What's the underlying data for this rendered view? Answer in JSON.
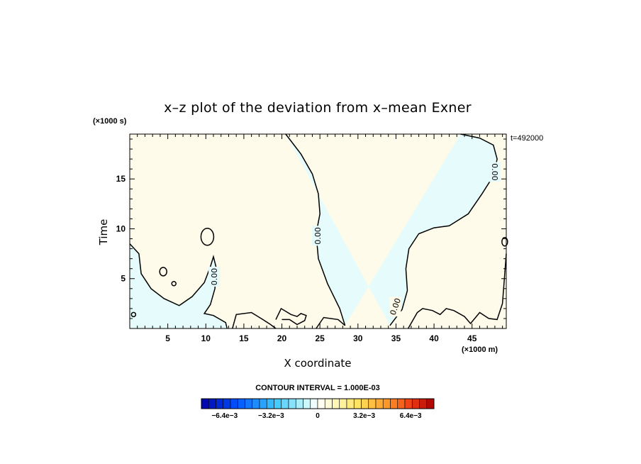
{
  "chart_data": {
    "type": "contour",
    "title": "x–z plot of the deviation from x–mean Exner",
    "xlabel": "X coordinate",
    "ylabel": "Time",
    "x_unit": "(×1000 m)",
    "y_unit": "(×1000 s)",
    "xlim": [
      0,
      49.5
    ],
    "ylim": [
      0,
      19.5
    ],
    "x_ticks": [
      5,
      10,
      15,
      20,
      25,
      30,
      35,
      40,
      45
    ],
    "y_ticks": [
      5,
      10,
      15
    ],
    "time_label": "t=492000",
    "contour_interval": "CONTOUR INTERVAL = 1.000E-03",
    "contour_labels": [
      "0.00",
      "0.00",
      "0.00",
      "0.00"
    ],
    "colorbar": {
      "min": -0.008,
      "max": 0.008,
      "levels": 32,
      "tick_labels": [
        "−6.4e−3",
        "−3.2e−3",
        "0",
        "3.2e−3",
        "6.4e−3"
      ],
      "tick_values": [
        -0.0064,
        -0.0032,
        0,
        0.0032,
        0.0064
      ]
    },
    "regions": [
      {
        "sign": "negative",
        "description": "central band x≈20–48 widening upward",
        "color": "#e6fcfc"
      },
      {
        "sign": "positive",
        "description": "background",
        "color": "#fffbea"
      }
    ],
    "zero_contour": [
      [
        [
          20.5,
          19.5
        ],
        [
          22.5,
          17.5
        ],
        [
          24.0,
          15.5
        ],
        [
          24.8,
          13.5
        ],
        [
          25.0,
          11.5
        ],
        [
          24.5,
          9.5
        ],
        [
          24.8,
          7.0
        ],
        [
          26.0,
          4.5
        ],
        [
          27.6,
          2.0
        ],
        [
          28.3,
          0.3
        ]
      ],
      [
        [
          34.2,
          0.3
        ],
        [
          35.8,
          1.9
        ],
        [
          36.5,
          3.8
        ],
        [
          36.3,
          6.0
        ],
        [
          36.7,
          8.0
        ],
        [
          38.0,
          9.5
        ],
        [
          40.0,
          10.1
        ],
        [
          42.0,
          10.3
        ],
        [
          44.5,
          11.5
        ],
        [
          46.3,
          13.5
        ],
        [
          47.8,
          15.3
        ],
        [
          48.3,
          17.0
        ],
        [
          47.8,
          18.4
        ],
        [
          46.0,
          19.1
        ],
        [
          43.5,
          19.5
        ]
      ]
    ]
  },
  "colors": {
    "negative_fill": "#e6fcfc",
    "positive_fill": "#fffbea",
    "colorbar_low": "#0000a8",
    "colorbar_high": "#a80000"
  }
}
